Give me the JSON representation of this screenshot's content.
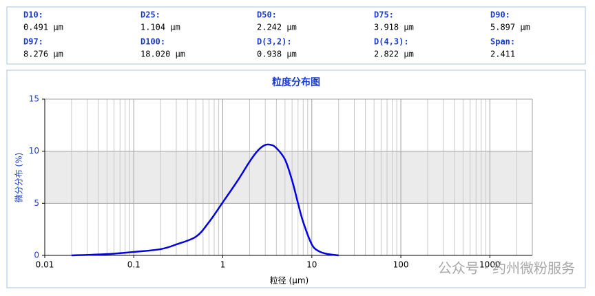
{
  "stats": [
    {
      "label": "D10:",
      "value": "0.491 μm"
    },
    {
      "label": "D25:",
      "value": "1.104 μm"
    },
    {
      "label": "D50:",
      "value": "2.242 μm"
    },
    {
      "label": "D75:",
      "value": "3.918 μm"
    },
    {
      "label": "D90:",
      "value": "5.897 μm"
    },
    {
      "label": "D97:",
      "value": "8.276 μm"
    },
    {
      "label": "D100:",
      "value": "18.020 μm"
    },
    {
      "label": "D(3,2):",
      "value": "0.938 μm"
    },
    {
      "label": "D(4,3):",
      "value": "2.822 μm"
    },
    {
      "label": "Span:",
      "value": "2.411"
    }
  ],
  "chart_data": {
    "type": "line",
    "title": "粒度分布图",
    "ylabel": "微分分布 (%)",
    "xlabel": "粒径 (μm)",
    "x": [
      0.02,
      0.05,
      0.1,
      0.2,
      0.3,
      0.5,
      0.7,
      1,
      1.5,
      2,
      2.5,
      3,
      3.5,
      4,
      5,
      6,
      7,
      8,
      10,
      12,
      15,
      20
    ],
    "series": [
      {
        "name": "微分分布",
        "color": "#0000e0",
        "values": [
          0,
          0.12,
          0.33,
          0.6,
          1.05,
          1.8,
          3.2,
          5.1,
          7.3,
          9.0,
          10.1,
          10.6,
          10.6,
          10.3,
          9.2,
          7.2,
          5.0,
          3.2,
          1.05,
          0.4,
          0.13,
          0
        ]
      }
    ],
    "x_log": true,
    "xlim": [
      0.01,
      3000
    ],
    "xticks": [
      0.01,
      0.1,
      1,
      10,
      100,
      1000
    ],
    "ylim": [
      0,
      15
    ],
    "yticks": [
      0,
      5,
      10,
      15
    ],
    "grid": true,
    "minor_grid": true,
    "shaded_band": [
      5,
      10
    ],
    "watermark": "公众号 · 约州微粉服务"
  }
}
